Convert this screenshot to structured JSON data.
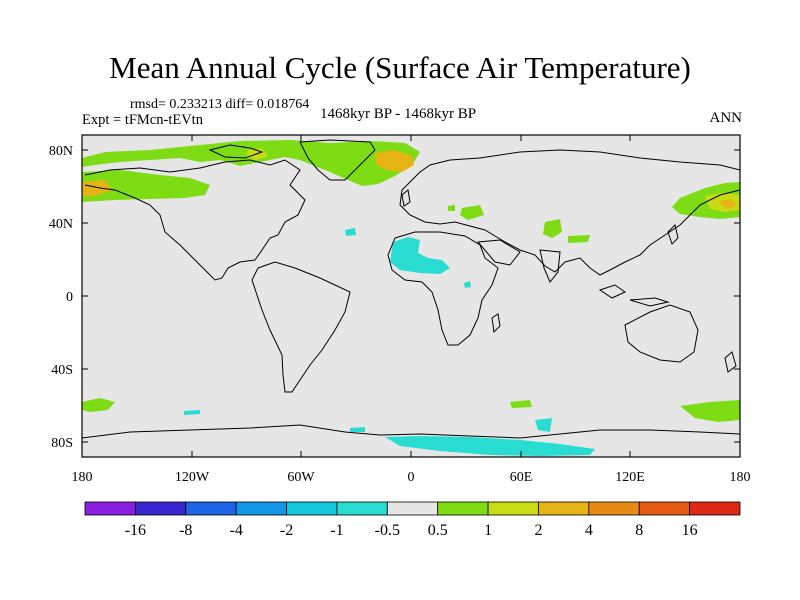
{
  "title": "Mean Annual Cycle (Surface Air Temperature)",
  "stats": "rmsd= 0.233213 diff= 0.018764",
  "experiment": "Expt = tFMcn-tEVtn",
  "period": "1468kyr BP - 1468kyr BP",
  "season": "ANN",
  "map": {
    "lon_ticks": [
      "180",
      "120W",
      "60W",
      "0",
      "60E",
      "120E",
      "180"
    ],
    "lat_ticks": [
      "80N",
      "40N",
      "0",
      "40S",
      "80S"
    ],
    "background_color": "#e6e6e6",
    "coastline_color": "#000000"
  },
  "colorbar": {
    "labels": [
      "-16",
      "-8",
      "-4",
      "-2",
      "-1",
      "-0.5",
      "0.5",
      "1",
      "2",
      "4",
      "8",
      "16"
    ],
    "colors": [
      "#8a1ee0",
      "#3c28d2",
      "#1e64e6",
      "#1496e6",
      "#14c8dc",
      "#28dcd2",
      "#e6e6e6",
      "#7ddc14",
      "#c8dc14",
      "#e6b414",
      "#e68c14",
      "#e65a14",
      "#dc2814"
    ]
  }
}
